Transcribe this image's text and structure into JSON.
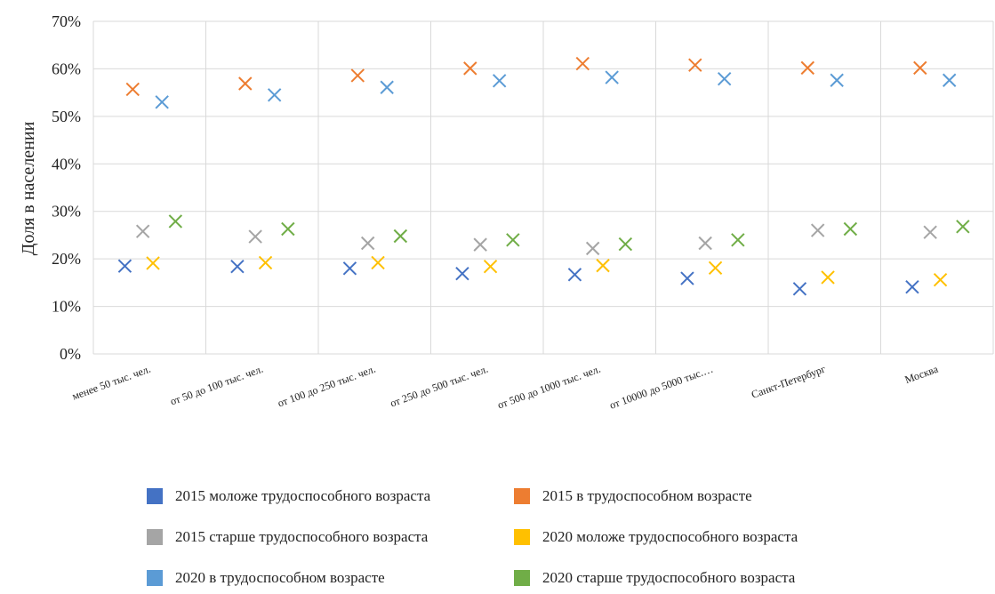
{
  "chart_data": {
    "type": "scatter",
    "ylabel": "Доля в населении",
    "y_ticks": [
      "0%",
      "10%",
      "20%",
      "30%",
      "40%",
      "50%",
      "60%",
      "70%"
    ],
    "ylim": [
      0,
      70
    ],
    "y_unit": "%",
    "categories": [
      "менее 50 тыс. чел.",
      "от 50 до 100 тыс. чел.",
      "от 100 до 250 тыс. чел.",
      "от 250 до 500 тыс. чел.",
      "от 500 до 1000 тыс. чел.",
      "от 10000 до 5000 тыс.…",
      "Санкт-Петербург",
      "Москва"
    ],
    "grid": true,
    "legend_position": "bottom",
    "marker": "x",
    "series": [
      {
        "name": "2015 моложе трудоспособного возраста",
        "color": "#4472C4",
        "values": [
          18.5,
          18.4,
          18.0,
          16.9,
          16.7,
          15.9,
          13.7,
          14.1
        ]
      },
      {
        "name": "2015 в трудоспособном возрасте",
        "color": "#ED7D31",
        "values": [
          55.7,
          56.9,
          58.6,
          60.1,
          61.1,
          60.8,
          60.2,
          60.2
        ]
      },
      {
        "name": "2015 старше трудоспособного возраста",
        "color": "#A5A5A5",
        "values": [
          25.8,
          24.7,
          23.3,
          23.0,
          22.2,
          23.3,
          26.0,
          25.6
        ]
      },
      {
        "name": "2020 моложе трудоспособного возраста",
        "color": "#FFC000",
        "values": [
          19.1,
          19.2,
          19.2,
          18.4,
          18.6,
          18.1,
          16.1,
          15.6
        ]
      },
      {
        "name": "2020 в трудоспособном возрасте",
        "color": "#5B9BD5",
        "values": [
          53.0,
          54.5,
          56.1,
          57.5,
          58.2,
          57.9,
          57.6,
          57.6
        ]
      },
      {
        "name": "2020 старше трудоспособного возраста",
        "color": "#70AD47",
        "values": [
          27.9,
          26.3,
          24.8,
          24.0,
          23.1,
          24.0,
          26.3,
          26.8
        ]
      }
    ]
  }
}
